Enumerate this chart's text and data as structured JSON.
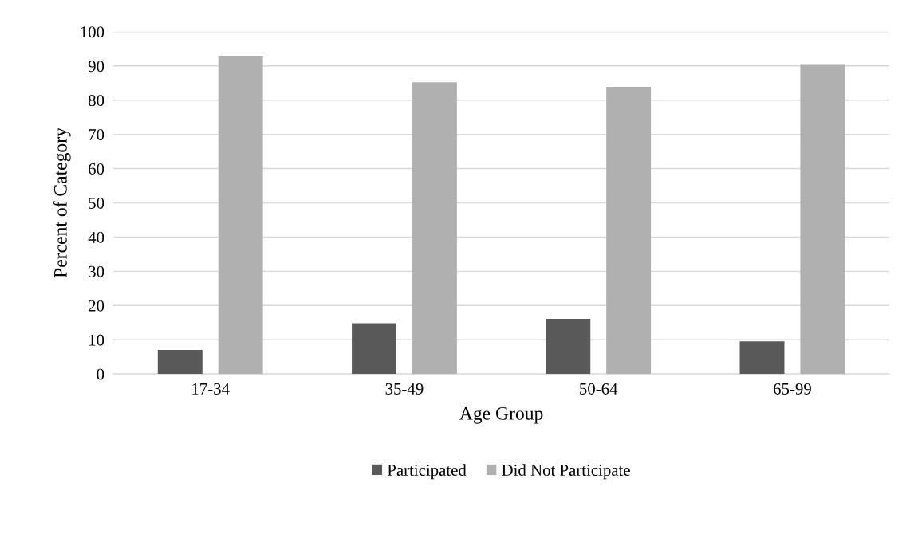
{
  "chart_data": {
    "type": "bar",
    "xlabel": "Age Group",
    "ylabel": "Percent of Category",
    "categories": [
      "17-34",
      "35-49",
      "50-64",
      "65-99"
    ],
    "series": [
      {
        "name": "Participated",
        "color": "#595959",
        "values": [
          7.0,
          14.8,
          16.1,
          9.5
        ]
      },
      {
        "name": "Did Not Participate",
        "color": "#b0b0b0",
        "values": [
          93.0,
          85.2,
          83.9,
          90.5
        ]
      }
    ],
    "ylim": [
      0,
      100
    ],
    "yticks": [
      0,
      10,
      20,
      30,
      40,
      50,
      60,
      70,
      80,
      90,
      100
    ],
    "grid": "y",
    "legend": "bottom"
  }
}
